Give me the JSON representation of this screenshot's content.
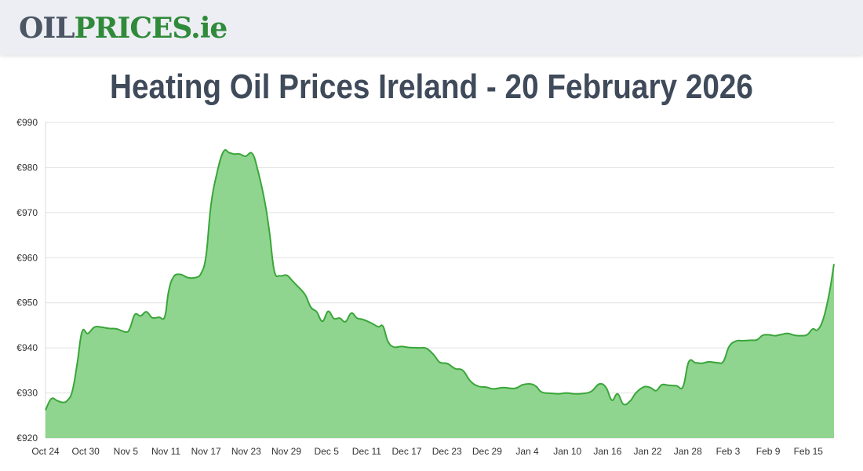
{
  "header": {
    "logo_oil": "OIL",
    "logo_prices": "PRICES",
    "logo_tld": ".ie"
  },
  "page_title": "Heating Oil Prices Ireland - 20 February 2026",
  "colors": {
    "line": "#3aa63a",
    "fill": "#8fd58f",
    "grid": "#e2e2e2",
    "logo_gray": "#4b5563",
    "logo_green": "#2f8a3a"
  },
  "chart_data": {
    "type": "area",
    "title": "",
    "xlabel": "",
    "ylabel": "",
    "ylim": [
      920,
      990
    ],
    "y_ticks": [
      920,
      930,
      940,
      950,
      960,
      970,
      980,
      990
    ],
    "y_tick_labels": [
      "€920",
      "€930",
      "€940",
      "€950",
      "€960",
      "€970",
      "€980",
      "€990"
    ],
    "x_range_days": [
      0,
      119
    ],
    "x_ticks": [
      {
        "day": 0,
        "label": "Oct 24"
      },
      {
        "day": 6,
        "label": "Oct 30"
      },
      {
        "day": 12,
        "label": "Nov 5"
      },
      {
        "day": 18,
        "label": "Nov 11"
      },
      {
        "day": 24,
        "label": "Nov 17"
      },
      {
        "day": 30,
        "label": "Nov 23"
      },
      {
        "day": 36,
        "label": "Nov 29"
      },
      {
        "day": 42,
        "label": "Dec 5"
      },
      {
        "day": 48,
        "label": "Dec 11"
      },
      {
        "day": 54,
        "label": "Dec 17"
      },
      {
        "day": 60,
        "label": "Dec 23"
      },
      {
        "day": 66,
        "label": "Dec 29"
      },
      {
        "day": 72,
        "label": "Jan 4"
      },
      {
        "day": 78,
        "label": "Jan 10"
      },
      {
        "day": 84,
        "label": "Jan 16"
      },
      {
        "day": 90,
        "label": "Jan 22"
      },
      {
        "day": 96,
        "label": "Jan 28"
      },
      {
        "day": 102,
        "label": "Feb 3"
      },
      {
        "day": 108,
        "label": "Feb 9"
      },
      {
        "day": 114,
        "label": "Feb 15"
      }
    ],
    "grid": true,
    "series": [
      {
        "name": "",
        "points": [
          [
            0,
            926.2
          ],
          [
            0.6,
            928.7
          ],
          [
            1.2,
            928.3
          ],
          [
            1.8,
            927.9
          ],
          [
            2.3,
            928.4
          ],
          [
            2.8,
            930.5
          ],
          [
            3.3,
            936.5
          ],
          [
            3.8,
            943.6
          ],
          [
            4.4,
            943.2
          ],
          [
            5.1,
            944.6
          ],
          [
            5.8,
            944.6
          ],
          [
            6.6,
            944.3
          ],
          [
            7.4,
            944.2
          ],
          [
            8.4,
            943.5
          ],
          [
            8.8,
            944.5
          ],
          [
            9.3,
            947.4
          ],
          [
            9.9,
            947.1
          ],
          [
            10.5,
            948.0
          ],
          [
            11.1,
            946.7
          ],
          [
            11.8,
            946.8
          ],
          [
            12.4,
            946.9
          ],
          [
            12.8,
            952.5
          ],
          [
            13.3,
            955.7
          ],
          [
            14.0,
            956.3
          ],
          [
            14.8,
            955.6
          ],
          [
            15.6,
            955.6
          ],
          [
            16.2,
            956.6
          ],
          [
            16.7,
            960.5
          ],
          [
            17.2,
            971.5
          ],
          [
            17.8,
            978.5
          ],
          [
            18.5,
            983.5
          ],
          [
            19.1,
            983.3
          ],
          [
            19.6,
            983.0
          ],
          [
            20.2,
            983.0
          ],
          [
            20.8,
            982.5
          ],
          [
            21.5,
            983.1
          ],
          [
            22.1,
            979.2
          ],
          [
            22.8,
            972.5
          ],
          [
            23.3,
            965.5
          ],
          [
            23.8,
            957.0
          ],
          [
            24.4,
            956.0
          ],
          [
            25.1,
            956.1
          ],
          [
            25.7,
            954.8
          ],
          [
            26.3,
            953.5
          ],
          [
            27.0,
            951.8
          ],
          [
            27.6,
            949.0
          ],
          [
            28.2,
            948.0
          ],
          [
            28.8,
            945.9
          ],
          [
            29.4,
            948.1
          ],
          [
            30.0,
            946.5
          ],
          [
            30.6,
            946.6
          ],
          [
            31.2,
            945.8
          ],
          [
            31.8,
            947.7
          ],
          [
            32.4,
            946.6
          ],
          [
            33.0,
            946.3
          ],
          [
            33.8,
            945.6
          ],
          [
            34.6,
            944.7
          ],
          [
            35.1,
            944.8
          ],
          [
            35.6,
            941.5
          ],
          [
            36.2,
            940.2
          ],
          [
            37.0,
            940.3
          ],
          [
            37.8,
            940.1
          ],
          [
            38.8,
            940.0
          ],
          [
            39.6,
            939.9
          ],
          [
            40.4,
            938.4
          ],
          [
            41.0,
            936.8
          ],
          [
            41.8,
            936.5
          ],
          [
            42.6,
            935.4
          ],
          [
            43.4,
            935.0
          ],
          [
            44.2,
            932.6
          ],
          [
            45.0,
            931.5
          ],
          [
            45.8,
            931.3
          ],
          [
            46.6,
            930.9
          ],
          [
            47.6,
            931.2
          ],
          [
            48.8,
            931.0
          ],
          [
            49.6,
            931.8
          ],
          [
            50.4,
            932.0
          ],
          [
            51.0,
            931.5
          ],
          [
            51.6,
            930.2
          ],
          [
            52.6,
            929.9
          ],
          [
            53.4,
            929.8
          ],
          [
            54.2,
            930.0
          ],
          [
            55.0,
            929.8
          ],
          [
            56.0,
            929.9
          ],
          [
            56.8,
            930.4
          ],
          [
            57.6,
            932.0
          ],
          [
            58.3,
            931.2
          ],
          [
            58.9,
            928.4
          ],
          [
            59.5,
            929.8
          ],
          [
            60.1,
            927.5
          ],
          [
            60.8,
            928.2
          ],
          [
            61.4,
            930.0
          ],
          [
            62.2,
            931.3
          ],
          [
            62.9,
            931.2
          ],
          [
            63.5,
            930.5
          ],
          [
            64.1,
            931.8
          ],
          [
            64.8,
            931.7
          ],
          [
            65.6,
            931.6
          ],
          [
            66.3,
            931.4
          ],
          [
            66.9,
            936.9
          ],
          [
            67.6,
            936.7
          ],
          [
            68.3,
            936.6
          ],
          [
            69.0,
            936.9
          ],
          [
            69.9,
            936.7
          ],
          [
            70.5,
            937.0
          ],
          [
            71.1,
            940.3
          ],
          [
            71.8,
            941.5
          ],
          [
            72.5,
            941.6
          ],
          [
            73.4,
            941.7
          ],
          [
            74.0,
            941.8
          ],
          [
            74.6,
            942.8
          ],
          [
            75.2,
            942.9
          ],
          [
            75.9,
            942.7
          ],
          [
            76.6,
            943.0
          ],
          [
            77.2,
            943.2
          ],
          [
            77.9,
            942.8
          ],
          [
            78.6,
            942.7
          ],
          [
            79.2,
            942.9
          ],
          [
            79.8,
            944.2
          ],
          [
            80.3,
            944.0
          ],
          [
            80.9,
            946.5
          ],
          [
            81.5,
            952.0
          ],
          [
            82.0,
            958.6
          ]
        ]
      }
    ]
  }
}
